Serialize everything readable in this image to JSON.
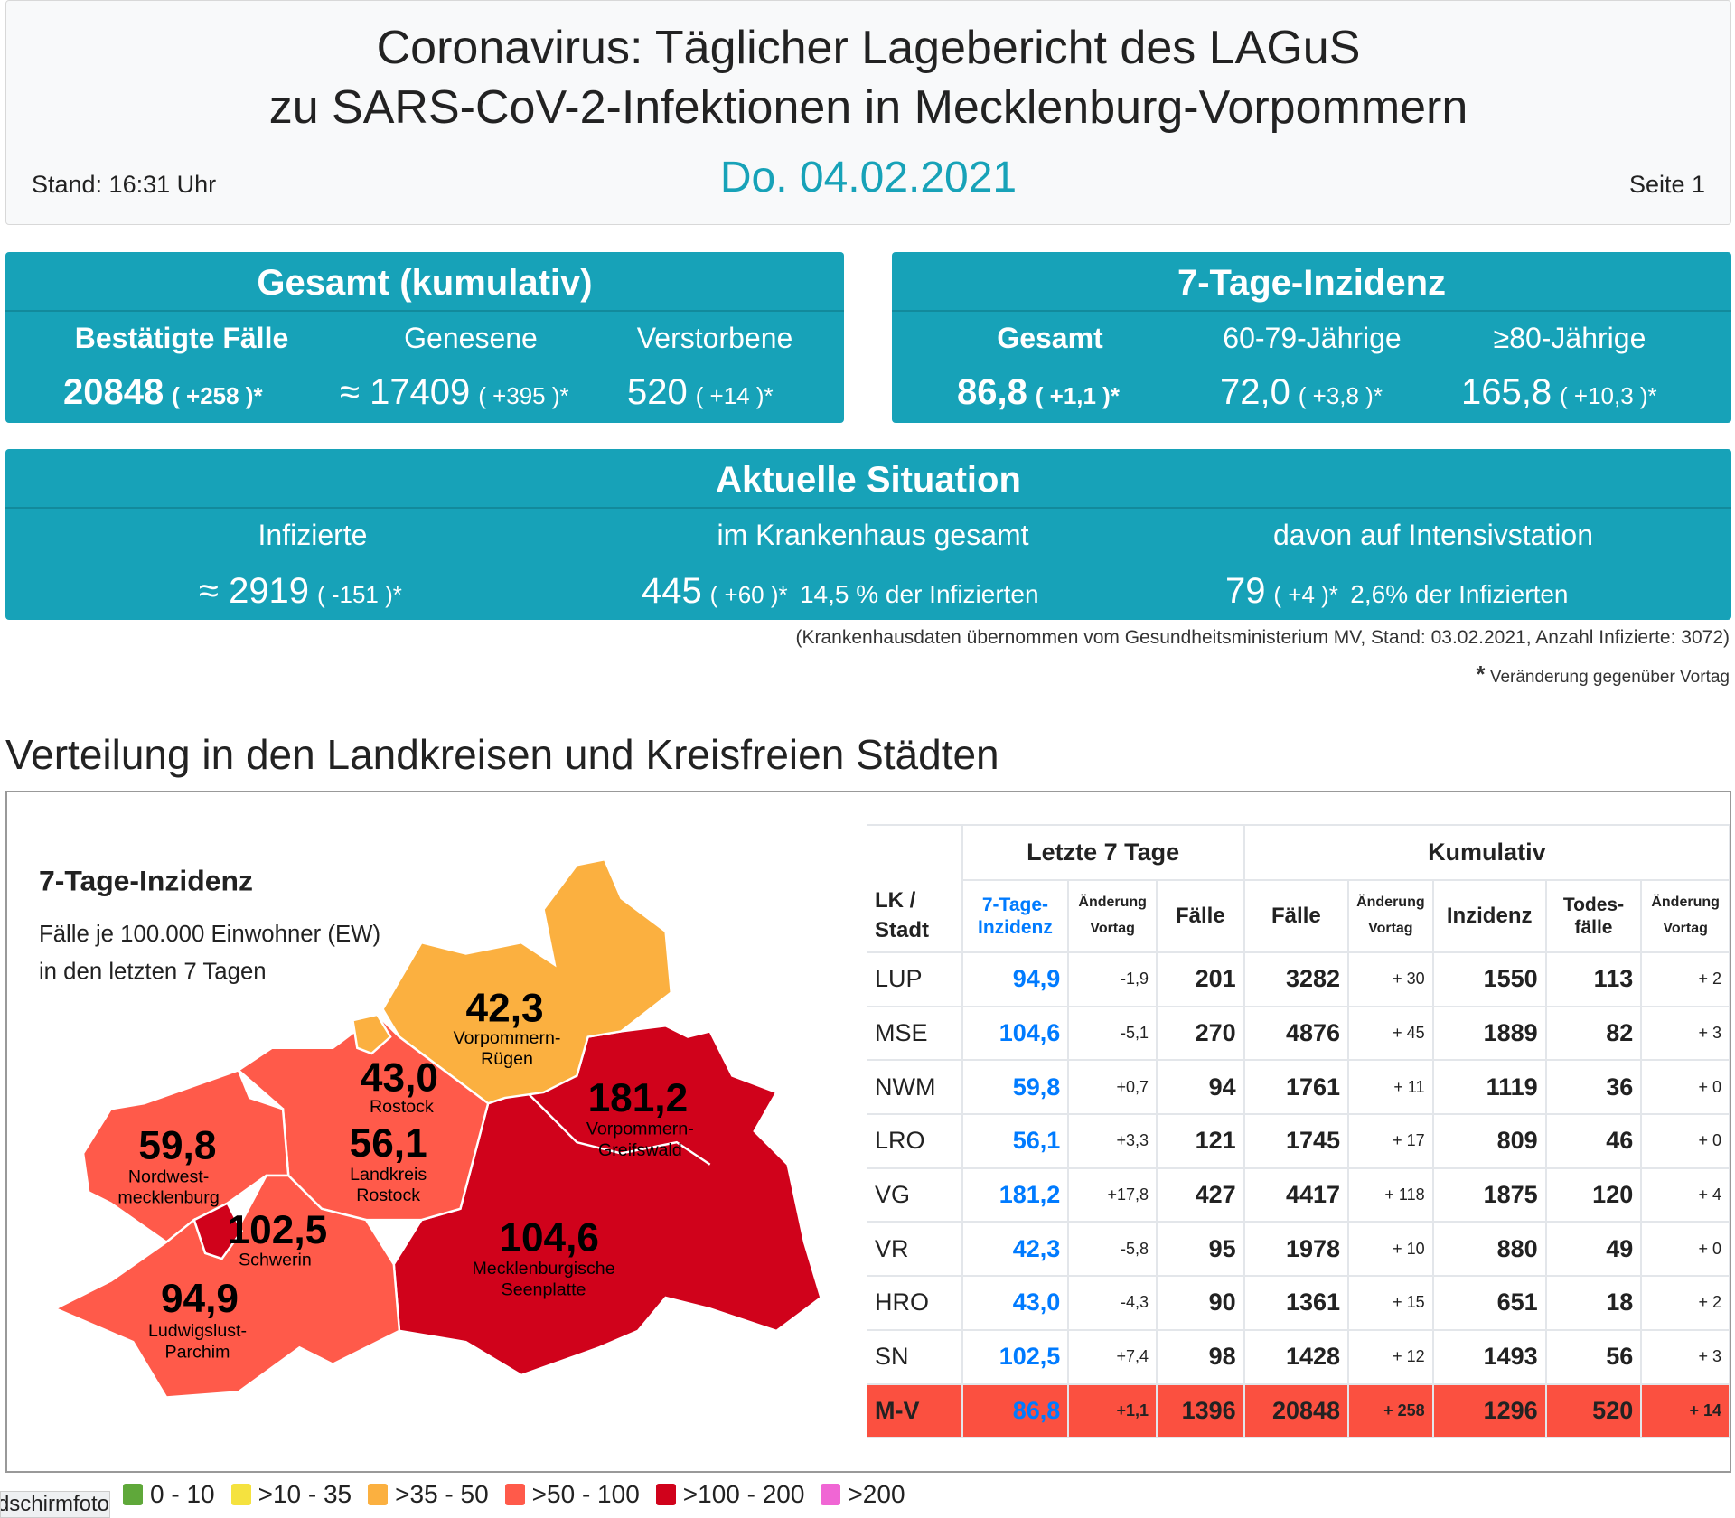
{
  "header": {
    "title_line1": "Coronavirus: Täglicher Lagebericht des LAGuS",
    "title_line2": "zu SARS-CoV-2-Infektionen in Mecklenburg-Vorpommern",
    "date": "Do. 04.02.2021",
    "stand": "Stand: 16:31 Uhr",
    "page": "Seite 1"
  },
  "gesamt": {
    "title": "Gesamt (kumulativ)",
    "items": [
      {
        "label": "Bestätigte Fälle",
        "value": "20848",
        "change": "( +258 )*"
      },
      {
        "label": "Genesene",
        "value": "≈ 17409",
        "change": "( +395 )*"
      },
      {
        "label": "Verstorbene",
        "value": "520",
        "change": "( +14 )*"
      }
    ]
  },
  "inzidenz": {
    "title": "7-Tage-Inzidenz",
    "items": [
      {
        "label": "Gesamt",
        "value": "86,8",
        "change": "( +1,1 )*"
      },
      {
        "label": "60-79-Jährige",
        "value": "72,0",
        "change": "( +3,8 )*"
      },
      {
        "label": "≥80-Jährige",
        "value": "165,8",
        "change": "( +10,3 )*"
      }
    ]
  },
  "aktuell": {
    "title": "Aktuelle Situation",
    "items": [
      {
        "label": "Infizierte",
        "value": "≈ 2919",
        "change": "( -151 )*",
        "extra": ""
      },
      {
        "label": "im Krankenhaus gesamt",
        "value": "445",
        "change": "( +60 )*",
        "extra": "14,5 % der Infizierten"
      },
      {
        "label": "davon auf Intensivstation",
        "value": "79",
        "change": "( +4 )*",
        "extra": "2,6% der Infizierten"
      }
    ]
  },
  "note": "(Krankenhausdaten übernommen vom Gesundheitsministerium MV, Stand: 03.02.2021, Anzahl Infizierte: 3072)",
  "footnote_star": "*",
  "footnote": "Veränderung gegenüber Vortag",
  "section_title": "Verteilung in den Landkreisen und Kreisfreien Städten",
  "map": {
    "title": "7-Tage-Inzidenz",
    "subtitle1": "Fälle je 100.000 Einwohner (EW)",
    "subtitle2": "in den letzten 7 Tagen",
    "regions": [
      {
        "value": "42,3",
        "name1": "Vorpommern-",
        "name2": "Rügen",
        "color": "#fbb040"
      },
      {
        "value": "43,0",
        "name1": "Rostock",
        "name2": "",
        "color": "#fbb040"
      },
      {
        "value": "181,2",
        "name1": "Vorpommern-",
        "name2": "Greifswald",
        "color": "#d0021b"
      },
      {
        "value": "59,8",
        "name1": "Nordwest-",
        "name2": "mecklenburg",
        "color": "#ff5a4a"
      },
      {
        "value": "56,1",
        "name1": "Landkreis",
        "name2": "Rostock",
        "color": "#ff5a4a"
      },
      {
        "value": "102,5",
        "name1": "Schwerin",
        "name2": "",
        "color": "#d0021b"
      },
      {
        "value": "104,6",
        "name1": "Mecklenburgische",
        "name2": "Seenplatte",
        "color": "#d0021b"
      },
      {
        "value": "94,9",
        "name1": "Ludwigslust-",
        "name2": "Parchim",
        "color": "#ff5a4a"
      }
    ]
  },
  "legend": [
    {
      "label": "0 - 10",
      "color": "#5fa83a"
    },
    {
      "label": ">10 - 35",
      "color": "#f5e23f"
    },
    {
      "label": ">35 - 50",
      "color": "#fbb040"
    },
    {
      "label": ">50 - 100",
      "color": "#ff5a4a"
    },
    {
      "label": ">100 - 200",
      "color": "#d0021b"
    },
    {
      "label": ">200",
      "color": "#f066d4"
    }
  ],
  "tooltip": "Bildschirmfoto",
  "table": {
    "group1": "Letzte 7 Tage",
    "group2": "Kumulativ",
    "col_lk1": "LK /",
    "col_lk2": "Stadt",
    "cols": {
      "inz1": "7-Tage-",
      "inz2": "Inzidenz",
      "aend1": "Änderung",
      "aend2": "Vortag",
      "faelle": "Fälle",
      "kfaelle": "Fälle",
      "kaend1": "Änderung",
      "kaend2": "Vortag",
      "kinz": "Inzidenz",
      "tod1": "Todes-",
      "tod2": "fälle",
      "taend1": "Änderung",
      "taend2": "Vortag"
    },
    "rows": [
      [
        "LUP",
        "94,9",
        "-1,9",
        "201",
        "3282",
        "+ 30",
        "1550",
        "113",
        "+ 2"
      ],
      [
        "MSE",
        "104,6",
        "-5,1",
        "270",
        "4876",
        "+ 45",
        "1889",
        "82",
        "+ 3"
      ],
      [
        "NWM",
        "59,8",
        "+0,7",
        "94",
        "1761",
        "+ 11",
        "1119",
        "36",
        "+ 0"
      ],
      [
        "LRO",
        "56,1",
        "+3,3",
        "121",
        "1745",
        "+ 17",
        "809",
        "46",
        "+ 0"
      ],
      [
        "VG",
        "181,2",
        "+17,8",
        "427",
        "4417",
        "+ 118",
        "1875",
        "120",
        "+ 4"
      ],
      [
        "VR",
        "42,3",
        "-5,8",
        "95",
        "1978",
        "+ 10",
        "880",
        "49",
        "+ 0"
      ],
      [
        "HRO",
        "43,0",
        "-4,3",
        "90",
        "1361",
        "+ 15",
        "651",
        "18",
        "+ 2"
      ],
      [
        "SN",
        "102,5",
        "+7,4",
        "98",
        "1428",
        "+ 12",
        "1493",
        "56",
        "+ 3"
      ],
      [
        "M-V",
        "86,8",
        "+1,1",
        "1396",
        "20848",
        "+ 258",
        "1296",
        "520",
        "+ 14"
      ]
    ]
  },
  "colors": {
    "teal": "#17a2b8",
    "blue": "#007bff",
    "mv_row": "#fb5040"
  }
}
